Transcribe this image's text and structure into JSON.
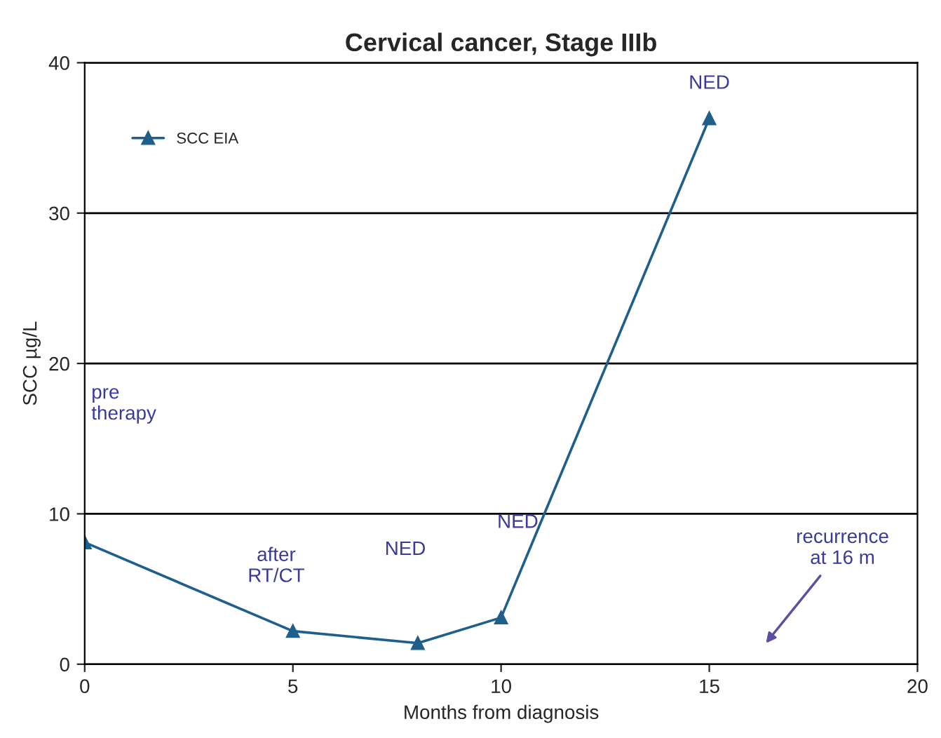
{
  "chart_data": {
    "type": "line",
    "title": "Cervical cancer, Stage IIIb",
    "xlabel": "Months from diagnosis",
    "ylabel": "SCC µg/L",
    "x": [
      0,
      5,
      8,
      10,
      15
    ],
    "series": [
      {
        "name": "SCC EIA",
        "color": "#1f5f8b",
        "values": [
          8.1,
          2.2,
          1.4,
          3.1,
          36.3
        ]
      }
    ],
    "xlim": [
      0,
      20
    ],
    "xticks": [
      0,
      5,
      10,
      15,
      20
    ],
    "ylim": [
      0,
      40
    ],
    "yticks": [
      0,
      10,
      20,
      30,
      40
    ],
    "grid": "y",
    "legend": "top left",
    "marker": "triangle",
    "line_style": "solid",
    "annotations": [
      "pre\ntherapy",
      "after\nRT/CT",
      "NED",
      "NED",
      "NED",
      "recurrence\nat 16 m"
    ]
  }
}
